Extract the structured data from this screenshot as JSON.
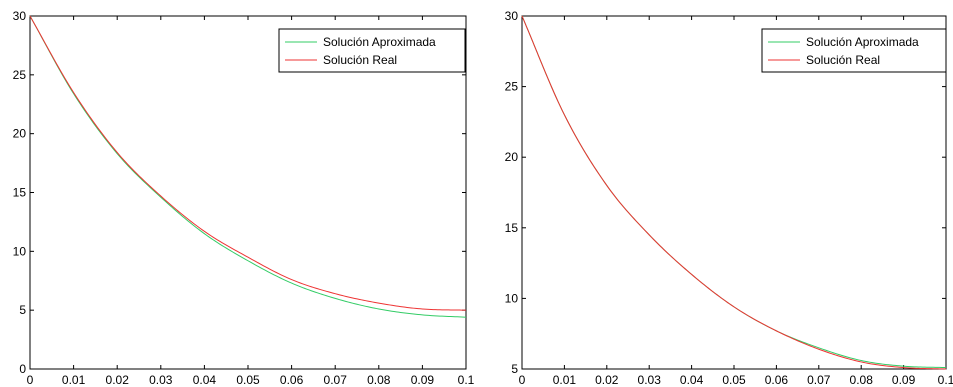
{
  "chart_data": [
    {
      "type": "line",
      "title": "",
      "xlabel": "",
      "ylabel": "",
      "xlim": [
        0,
        0.1
      ],
      "ylim": [
        0,
        30
      ],
      "xticks": [
        "0",
        "0.01",
        "0.02",
        "0.03",
        "0.04",
        "0.05",
        "0.06",
        "0.07",
        "0.08",
        "0.09",
        "0.1"
      ],
      "yticks": [
        "0",
        "5",
        "10",
        "15",
        "20",
        "25",
        "30"
      ],
      "xtick_values": [
        0,
        0.01,
        0.02,
        0.03,
        0.04,
        0.05,
        0.06,
        0.07,
        0.08,
        0.09,
        0.1
      ],
      "ytick_values": [
        0,
        5,
        10,
        15,
        20,
        25,
        30
      ],
      "grid": false,
      "legend": "top-right",
      "x": [
        0,
        0.01,
        0.02,
        0.03,
        0.04,
        0.05,
        0.06,
        0.07,
        0.08,
        0.09,
        0.1
      ],
      "series": [
        {
          "name": "Solución Aproximada",
          "color": "#33cc66",
          "values": [
            30,
            23.4,
            18.3,
            14.6,
            11.5,
            9.2,
            7.3,
            6.0,
            5.1,
            4.6,
            4.4
          ]
        },
        {
          "name": "Solución Real",
          "color": "#ee3333",
          "values": [
            30,
            23.5,
            18.4,
            14.7,
            11.7,
            9.5,
            7.6,
            6.4,
            5.6,
            5.1,
            5.0
          ]
        }
      ]
    },
    {
      "type": "line",
      "title": "",
      "xlabel": "",
      "ylabel": "",
      "xlim": [
        0,
        0.1
      ],
      "ylim": [
        5,
        30
      ],
      "xticks": [
        "0",
        "0.01",
        "0.02",
        "0.03",
        "0.04",
        "0.05",
        "0.06",
        "0.07",
        "0.08",
        "0.09",
        "0.1"
      ],
      "yticks": [
        "5",
        "10",
        "15",
        "20",
        "25",
        "30"
      ],
      "xtick_values": [
        0,
        0.01,
        0.02,
        0.03,
        0.04,
        0.05,
        0.06,
        0.07,
        0.08,
        0.09,
        0.1
      ],
      "ytick_values": [
        5,
        10,
        15,
        20,
        25,
        30
      ],
      "grid": false,
      "legend": "top-right",
      "x": [
        0,
        0.01,
        0.02,
        0.03,
        0.04,
        0.05,
        0.06,
        0.07,
        0.08,
        0.09,
        0.1
      ],
      "series": [
        {
          "name": "Solución Aproximada",
          "color": "#33cc66",
          "values": [
            30,
            23.0,
            18.0,
            14.5,
            11.7,
            9.4,
            7.7,
            6.5,
            5.6,
            5.2,
            5.1
          ]
        },
        {
          "name": "Solución Real",
          "color": "#ee3333",
          "values": [
            30,
            23.0,
            18.0,
            14.5,
            11.7,
            9.4,
            7.7,
            6.4,
            5.5,
            5.1,
            5.0
          ]
        }
      ]
    }
  ]
}
